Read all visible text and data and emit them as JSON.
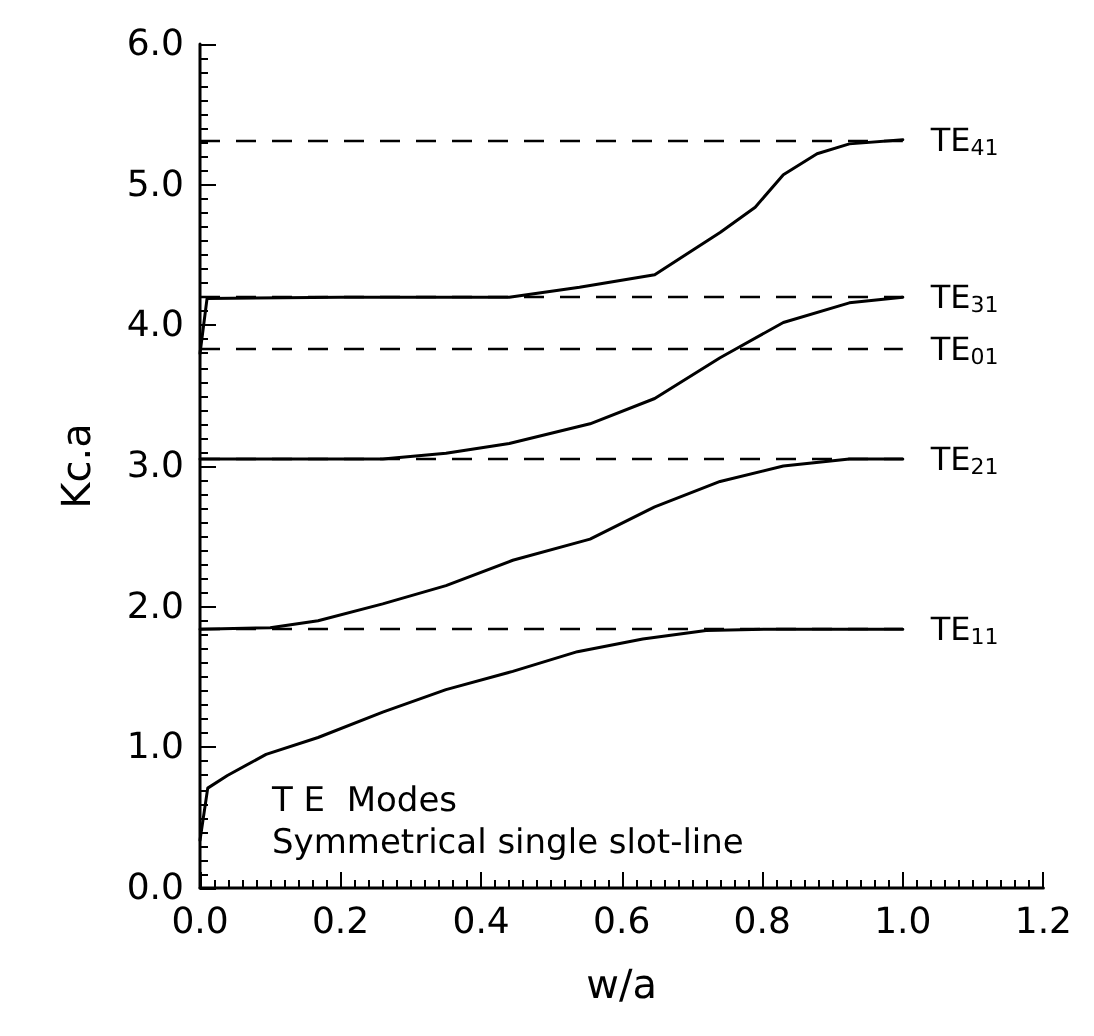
{
  "chart_data": {
    "type": "line",
    "xlabel": "w/a",
    "ylabel": "Kc.a",
    "xlim": [
      0,
      1.2
    ],
    "ylim": [
      0,
      6
    ],
    "xticks": [
      {
        "value": 0,
        "label": "0.0"
      },
      {
        "value": 0.2,
        "label": "0.2"
      },
      {
        "value": 0.4,
        "label": "0.4"
      },
      {
        "value": 0.6,
        "label": "0.6"
      },
      {
        "value": 0.8,
        "label": "0.8"
      },
      {
        "value": 1,
        "label": "1.0"
      },
      {
        "value": 1.2,
        "label": "1.2"
      }
    ],
    "yticks": [
      {
        "value": 0,
        "label": "0.0"
      },
      {
        "value": 1,
        "label": "1.0"
      },
      {
        "value": 2,
        "label": "2.0"
      },
      {
        "value": 3,
        "label": "3.0"
      },
      {
        "value": 4,
        "label": "4.0"
      },
      {
        "value": 5,
        "label": "5.0"
      },
      {
        "value": 6,
        "label": "6.0"
      }
    ],
    "grid": false,
    "marker": "none",
    "line_style": "solid",
    "series": [
      {
        "color": "#000000",
        "x": [
          0,
          0.011,
          0.039,
          0.094,
          0.168,
          0.26,
          0.35,
          0.445,
          0.537,
          0.63,
          0.72,
          0.81,
          0.9,
          1.0
        ],
        "values": [
          0.34,
          0.71,
          0.8,
          0.95,
          1.07,
          1.25,
          1.41,
          1.54,
          1.68,
          1.77,
          1.83,
          1.84,
          1.84,
          1.84
        ]
      },
      {
        "color": "#000000",
        "x": [
          0,
          0.1,
          0.168,
          0.26,
          0.35,
          0.445,
          0.555,
          0.647,
          0.74,
          0.83,
          0.924,
          1.0
        ],
        "values": [
          1.84,
          1.85,
          1.9,
          2.02,
          2.15,
          2.33,
          2.48,
          2.71,
          2.89,
          3.0,
          3.05,
          3.05
        ]
      },
      {
        "color": "#000000",
        "x": [
          0,
          0.15,
          0.26,
          0.35,
          0.44,
          0.555,
          0.647,
          0.74,
          0.83,
          0.924,
          1.0
        ],
        "values": [
          3.05,
          3.05,
          3.05,
          3.09,
          3.16,
          3.3,
          3.48,
          3.77,
          4.02,
          4.16,
          4.2
        ]
      },
      {
        "color": "#000000",
        "x": [
          0,
          0.01,
          0.2,
          0.44,
          0.54,
          0.647,
          0.74,
          0.79,
          0.83,
          0.878,
          0.924,
          1.0
        ],
        "values": [
          3.8,
          4.19,
          4.2,
          4.2,
          4.27,
          4.36,
          4.66,
          4.84,
          5.07,
          5.22,
          5.29,
          5.32
        ]
      }
    ],
    "ref_lines": [
      {
        "axis": "y",
        "value": 5.32,
        "label": "TE$_{41}$",
        "line_style": "dashed"
      },
      {
        "axis": "y",
        "value": 4.2,
        "label": "TE$_{31}$",
        "line_style": "dashed"
      },
      {
        "axis": "y",
        "value": 3.83,
        "label": "TE$_{01}$",
        "line_style": "dashed"
      },
      {
        "axis": "y",
        "value": 3.05,
        "label": "TE$_{21}$",
        "line_style": "dashed"
      },
      {
        "axis": "y",
        "value": 1.84,
        "label": "TE$_{11}$",
        "line_style": "dashed"
      }
    ],
    "annotations": [
      "T E  Modes",
      "Symmetrical single slot-line"
    ]
  }
}
